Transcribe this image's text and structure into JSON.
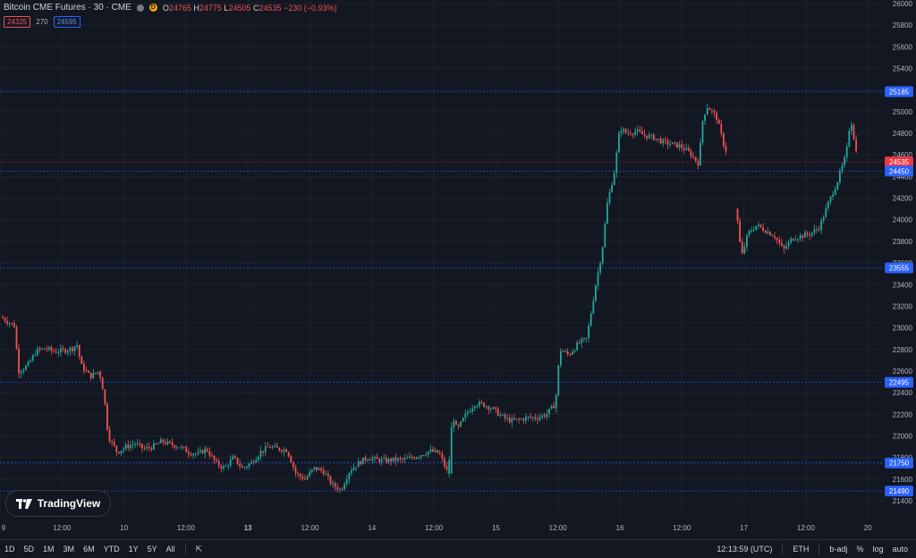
{
  "legend": {
    "title": "Bitcoin CME Futures · 30 · CME",
    "badge": "D",
    "o_label": "O",
    "o_value": "24765",
    "h_label": "H",
    "h_value": "24775",
    "l_label": "L",
    "l_value": "24505",
    "c_label": "C",
    "c_value": "24535",
    "change": "−230 (−0.93%)",
    "bid": "24325",
    "spread": "270",
    "ask": "24595"
  },
  "logo_text": "TradingView",
  "bottom": {
    "ranges": [
      "1D",
      "5D",
      "1M",
      "3M",
      "6M",
      "YTD",
      "1Y",
      "5Y",
      "All"
    ],
    "time": "12:13:59 (UTC)",
    "session": "ETH",
    "adj": "b-adj",
    "pct": "%",
    "log": "log",
    "auto": "auto"
  },
  "colors": {
    "up": "#26a69a",
    "down": "#ef5350",
    "background": "#131722",
    "grid": "#1e222d",
    "price_line_blue": "#2962ff",
    "last_price_red": "#f23645"
  },
  "chart_data": {
    "type": "candlestick",
    "y_ticks": [
      "26000",
      "25800",
      "25600",
      "25400",
      "25200",
      "25000",
      "24800",
      "24600",
      "24400",
      "24200",
      "24000",
      "23800",
      "23600",
      "23400",
      "23200",
      "23000",
      "22800",
      "22600",
      "22400",
      "22200",
      "22000",
      "21800",
      "21600",
      "21400"
    ],
    "ylim": [
      21400,
      26000
    ],
    "x_ticks": [
      "9",
      "12:00",
      "10",
      "12:00",
      "13",
      "12:00",
      "14",
      "12:00",
      "15",
      "12:00",
      "16",
      "12:00",
      "17",
      "12:00",
      "20"
    ],
    "x_ticks_bold": [
      "13"
    ],
    "price_markers": [
      {
        "value": 25185,
        "label": "25185",
        "style": "blue"
      },
      {
        "value": 24535,
        "label": "24535",
        "style": "red"
      },
      {
        "value": 24450,
        "label": "24450",
        "style": "blue"
      },
      {
        "value": 23555,
        "label": "23555",
        "style": "blue"
      },
      {
        "value": 22495,
        "label": "22495",
        "style": "blue"
      },
      {
        "value": 21750,
        "label": "21750",
        "style": "blue"
      },
      {
        "value": 21490,
        "label": "21490",
        "style": "blue"
      }
    ],
    "close_path": [
      [
        0,
        23100
      ],
      [
        15,
        23020
      ],
      [
        20,
        22600
      ],
      [
        30,
        22650
      ],
      [
        40,
        22790
      ],
      [
        50,
        22810
      ],
      [
        60,
        22780
      ],
      [
        70,
        22790
      ],
      [
        80,
        22810
      ],
      [
        85,
        22850
      ],
      [
        90,
        22650
      ],
      [
        100,
        22550
      ],
      [
        110,
        22600
      ],
      [
        115,
        22400
      ],
      [
        120,
        22000
      ],
      [
        130,
        21850
      ],
      [
        140,
        21900
      ],
      [
        150,
        21930
      ],
      [
        160,
        21880
      ],
      [
        170,
        21900
      ],
      [
        180,
        21950
      ],
      [
        190,
        21920
      ],
      [
        200,
        21900
      ],
      [
        210,
        21850
      ],
      [
        220,
        21830
      ],
      [
        230,
        21880
      ],
      [
        240,
        21750
      ],
      [
        250,
        21700
      ],
      [
        260,
        21800
      ],
      [
        270,
        21700
      ],
      [
        280,
        21750
      ],
      [
        290,
        21850
      ],
      [
        300,
        21900
      ],
      [
        310,
        21880
      ],
      [
        320,
        21870
      ],
      [
        330,
        21650
      ],
      [
        340,
        21600
      ],
      [
        350,
        21700
      ],
      [
        360,
        21680
      ],
      [
        370,
        21550
      ],
      [
        380,
        21500
      ],
      [
        390,
        21680
      ],
      [
        400,
        21750
      ],
      [
        410,
        21800
      ],
      [
        420,
        21780
      ],
      [
        430,
        21770
      ],
      [
        440,
        21780
      ],
      [
        450,
        21780
      ],
      [
        460,
        21800
      ],
      [
        470,
        21830
      ],
      [
        480,
        21860
      ],
      [
        490,
        21840
      ],
      [
        500,
        21650
      ],
      [
        505,
        22200
      ],
      [
        510,
        22050
      ],
      [
        520,
        22200
      ],
      [
        530,
        22300
      ],
      [
        540,
        22290
      ],
      [
        550,
        22250
      ],
      [
        560,
        22180
      ],
      [
        570,
        22140
      ],
      [
        580,
        22150
      ],
      [
        590,
        22170
      ],
      [
        600,
        22170
      ],
      [
        610,
        22200
      ],
      [
        620,
        22300
      ],
      [
        625,
        22800
      ],
      [
        635,
        22750
      ],
      [
        645,
        22850
      ],
      [
        655,
        22900
      ],
      [
        665,
        23400
      ],
      [
        672,
        23700
      ],
      [
        678,
        24150
      ],
      [
        686,
        24450
      ],
      [
        692,
        24850
      ],
      [
        700,
        24800
      ],
      [
        710,
        24820
      ],
      [
        720,
        24780
      ],
      [
        730,
        24760
      ],
      [
        740,
        24720
      ],
      [
        750,
        24700
      ],
      [
        760,
        24680
      ],
      [
        770,
        24620
      ],
      [
        780,
        24520
      ],
      [
        785,
        24950
      ],
      [
        790,
        25050
      ],
      [
        800,
        24950
      ],
      [
        808,
        24700
      ],
      [
        815,
        24550
      ],
      [
        820,
        24540
      ],
      [
        823,
        24030
      ],
      [
        828,
        23650
      ],
      [
        835,
        23870
      ],
      [
        845,
        23950
      ],
      [
        855,
        23900
      ],
      [
        865,
        23850
      ],
      [
        875,
        23720
      ],
      [
        885,
        23830
      ],
      [
        895,
        23850
      ],
      [
        905,
        23870
      ],
      [
        915,
        23930
      ],
      [
        925,
        24150
      ],
      [
        935,
        24350
      ],
      [
        945,
        24600
      ],
      [
        950,
        24950
      ],
      [
        958,
        24535
      ]
    ]
  }
}
